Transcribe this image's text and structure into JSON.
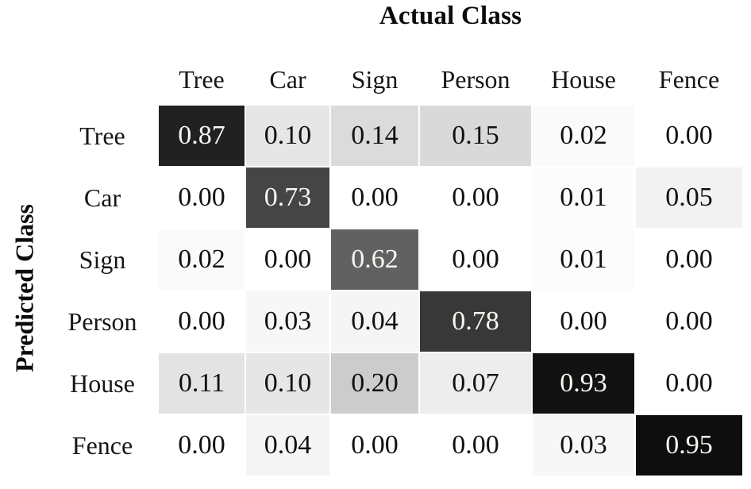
{
  "chart_data": {
    "type": "heatmap",
    "title": "",
    "x_axis_label": "Actual Class",
    "y_axis_label": "Predicted Class",
    "columns": [
      "Tree",
      "Car",
      "Sign",
      "Person",
      "House",
      "Fence"
    ],
    "rows": [
      "Tree",
      "Car",
      "Sign",
      "Person",
      "House",
      "Fence"
    ],
    "values": [
      [
        0.87,
        0.1,
        0.14,
        0.15,
        0.02,
        0.0
      ],
      [
        0.0,
        0.73,
        0.0,
        0.0,
        0.01,
        0.05
      ],
      [
        0.02,
        0.0,
        0.62,
        0.0,
        0.01,
        0.0
      ],
      [
        0.0,
        0.03,
        0.04,
        0.78,
        0.0,
        0.0
      ],
      [
        0.11,
        0.1,
        0.2,
        0.07,
        0.93,
        0.0
      ],
      [
        0.0,
        0.04,
        0.0,
        0.0,
        0.03,
        0.95
      ]
    ],
    "value_range": [
      0,
      1
    ],
    "value_format": "two_decimals",
    "legend": "none",
    "grid": "off",
    "colormap": {
      "low_color": "#ffffff",
      "high_color": "#000000",
      "mapping": "cell background interpolates white (0.00) to black (1.00) linearly with value",
      "light_text_threshold": 0.5,
      "text_on_dark": "#f8f6f0",
      "text_on_light": "#101114"
    }
  }
}
